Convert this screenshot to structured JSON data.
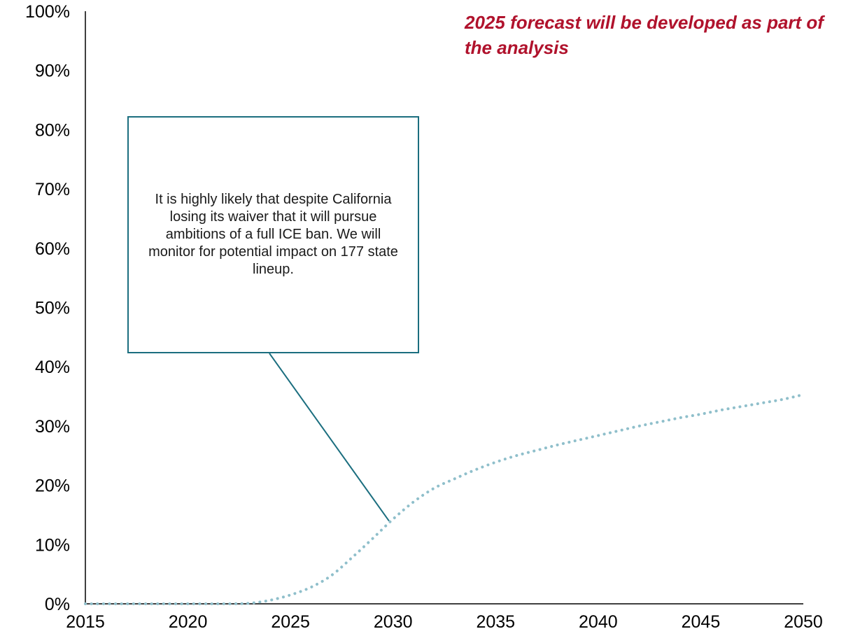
{
  "colors": {
    "series": "#8fbfcb",
    "callout_border": "#1b6e7f",
    "note_text": "#b0122c",
    "axis": "#000000"
  },
  "annotations": {
    "forecast_note": "2025 forecast will be developed as part of the analysis",
    "callout": "It is highly likely that despite California losing its waiver that it will pursue ambitions of a full ICE ban. We will monitor for potential impact on 177 state lineup.",
    "callout_pointer_target": {
      "x": 2029.8,
      "y": 0.14
    }
  },
  "chart_data": {
    "type": "line",
    "title": "",
    "xlabel": "",
    "ylabel": "",
    "xlim": [
      2015,
      2050
    ],
    "ylim": [
      0,
      1
    ],
    "grid": false,
    "legend": "none",
    "line_style": "dotted",
    "x_ticks": [
      2015,
      2020,
      2025,
      2030,
      2035,
      2040,
      2045,
      2050
    ],
    "x_tick_labels": [
      "2015",
      "2020",
      "2025",
      "2030",
      "2035",
      "2040",
      "2045",
      "2050"
    ],
    "y_ticks": [
      0,
      0.1,
      0.2,
      0.3,
      0.4,
      0.5,
      0.6,
      0.7,
      0.8,
      0.9,
      1.0
    ],
    "y_tick_labels": [
      "0%",
      "10%",
      "20%",
      "30%",
      "40%",
      "50%",
      "60%",
      "70%",
      "80%",
      "90%",
      "100%"
    ],
    "series": [
      {
        "x": [
          2015,
          2016,
          2017,
          2018,
          2019,
          2020,
          2021,
          2022,
          2023,
          2024,
          2025,
          2026,
          2027,
          2028,
          2029,
          2030,
          2031,
          2032,
          2033,
          2034,
          2035,
          2036,
          2037,
          2038,
          2039,
          2040,
          2041,
          2042,
          2043,
          2044,
          2045,
          2046,
          2047,
          2048,
          2049,
          2050
        ],
        "values": [
          0,
          0,
          0,
          0,
          0,
          0,
          0,
          0,
          0.001,
          0.006,
          0.015,
          0.028,
          0.048,
          0.078,
          0.11,
          0.143,
          0.172,
          0.195,
          0.211,
          0.226,
          0.239,
          0.25,
          0.259,
          0.268,
          0.276,
          0.284,
          0.292,
          0.3,
          0.307,
          0.314,
          0.32,
          0.327,
          0.333,
          0.339,
          0.345,
          0.353
        ]
      }
    ]
  }
}
